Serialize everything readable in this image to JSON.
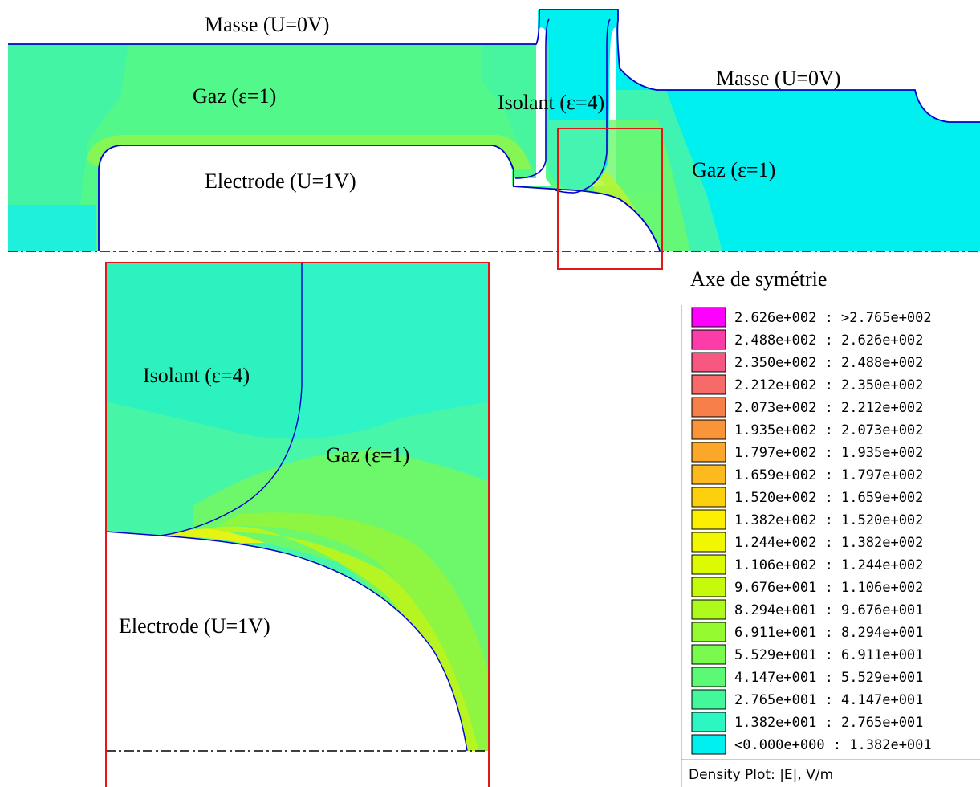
{
  "labels": {
    "masse_top": "Masse (U=0V)",
    "masse_right": "Masse (U=0V)",
    "gaz_left": "Gaz (ε=1)",
    "gaz_right": "Gaz (ε=1)",
    "isolant_top": "Isolant (ε=4)",
    "electrode_top": "Electrode (U=1V)",
    "symmetry_axis": "Axe de symétrie",
    "isolant_zoom": "Isolant (ε=4)",
    "gaz_zoom": "Gaz (ε=1)",
    "electrode_zoom": "Electrode (U=1V)"
  },
  "legend": {
    "caption": "Density Plot: |E|, V/m",
    "entries": [
      {
        "label": "2.626e+002 : >2.765e+002",
        "color": "#ff00ff"
      },
      {
        "label": "2.488e+002 : 2.626e+002",
        "color": "#fb3ca9"
      },
      {
        "label": "2.350e+002 : 2.488e+002",
        "color": "#f75882"
      },
      {
        "label": "2.212e+002 : 2.350e+002",
        "color": "#f76a6a"
      },
      {
        "label": "2.073e+002 : 2.212e+002",
        "color": "#f7804a"
      },
      {
        "label": "1.935e+002 : 2.073e+002",
        "color": "#f99438"
      },
      {
        "label": "1.797e+002 : 1.935e+002",
        "color": "#fba82a"
      },
      {
        "label": "1.659e+002 : 1.797e+002",
        "color": "#fdba1e"
      },
      {
        "label": "1.520e+002 : 1.659e+002",
        "color": "#fdd00e"
      },
      {
        "label": "1.382e+002 : 1.520e+002",
        "color": "#fdef00"
      },
      {
        "label": "1.244e+002 : 1.382e+002",
        "color": "#f1f700"
      },
      {
        "label": "1.106e+002 : 1.244e+002",
        "color": "#dcfa02"
      },
      {
        "label": "9.676e+001 : 1.106e+002",
        "color": "#c6fa0c"
      },
      {
        "label": "8.294e+001 : 9.676e+001",
        "color": "#aefa1c"
      },
      {
        "label": "6.911e+001 : 8.294e+001",
        "color": "#96fa30"
      },
      {
        "label": "5.529e+001 : 6.911e+001",
        "color": "#7afa4c"
      },
      {
        "label": "4.147e+001 : 5.529e+001",
        "color": "#5cfa74"
      },
      {
        "label": "2.765e+001 : 4.147e+001",
        "color": "#42f89a"
      },
      {
        "label": "1.382e+001 : 2.765e+001",
        "color": "#2cf6c2"
      },
      {
        "label": "<0.000e+000 : 1.382e+001",
        "color": "#00f0f0"
      }
    ]
  }
}
